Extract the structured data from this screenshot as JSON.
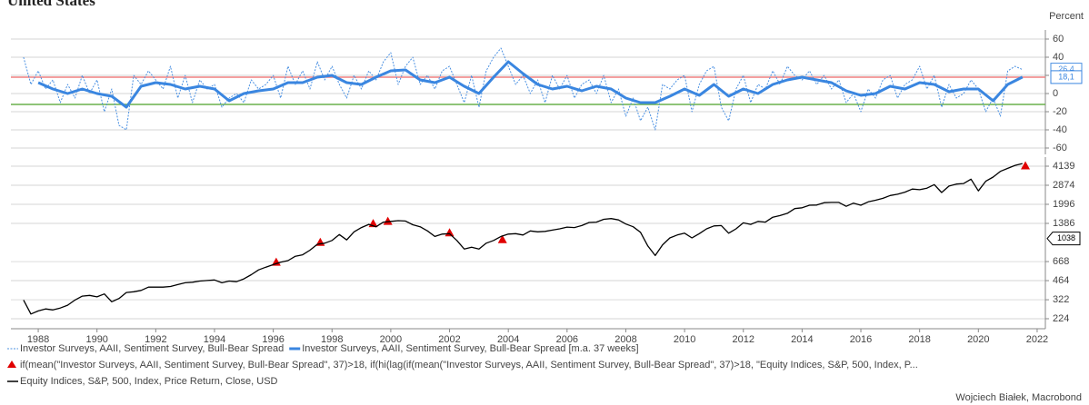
{
  "title": "United States",
  "unit": "Percent",
  "source": "Wojciech Białek, Macrobond",
  "chart_data": [
    {
      "type": "line",
      "ylim": [
        -67,
        70
      ],
      "yticks": [
        60,
        40,
        20,
        0,
        -20,
        -40,
        -60
      ],
      "grid": true,
      "xlim": [
        1987.07,
        2022.28
      ],
      "reference_lines": [
        {
          "value": 18,
          "color": "#f08080"
        },
        {
          "value": -12,
          "color": "#6ab04c"
        }
      ],
      "series": [
        {
          "name": "Investor Surveys, AAII, Sentiment Survey, Bull-Bear Spread",
          "color": "#4a90e2",
          "style": "dotted",
          "x": [
            1987.5,
            1987.75,
            1988,
            1988.25,
            1988.5,
            1988.75,
            1989,
            1989.25,
            1989.5,
            1989.75,
            1990,
            1990.25,
            1990.5,
            1990.75,
            1991,
            1991.25,
            1991.5,
            1991.75,
            1992,
            1992.25,
            1992.5,
            1992.75,
            1993,
            1993.25,
            1993.5,
            1993.75,
            1994,
            1994.25,
            1994.5,
            1994.75,
            1995,
            1995.25,
            1995.5,
            1995.75,
            1996,
            1996.25,
            1996.5,
            1996.75,
            1997,
            1997.25,
            1997.5,
            1997.75,
            1998,
            1998.25,
            1998.5,
            1998.75,
            1999,
            1999.25,
            1999.5,
            1999.75,
            2000,
            2000.25,
            2000.5,
            2000.75,
            2001,
            2001.25,
            2001.5,
            2001.75,
            2002,
            2002.25,
            2002.5,
            2002.75,
            2003,
            2003.25,
            2003.5,
            2003.75,
            2004,
            2004.25,
            2004.5,
            2004.75,
            2005,
            2005.25,
            2005.5,
            2005.75,
            2006,
            2006.25,
            2006.5,
            2006.75,
            2007,
            2007.25,
            2007.5,
            2007.75,
            2008,
            2008.25,
            2008.5,
            2008.75,
            2009,
            2009.25,
            2009.5,
            2009.75,
            2010,
            2010.25,
            2010.5,
            2010.75,
            2011,
            2011.25,
            2011.5,
            2011.75,
            2012,
            2012.25,
            2012.5,
            2012.75,
            2013,
            2013.25,
            2013.5,
            2013.75,
            2014,
            2014.25,
            2014.5,
            2014.75,
            2015,
            2015.25,
            2015.5,
            2015.75,
            2016,
            2016.25,
            2016.5,
            2016.75,
            2017,
            2017.25,
            2017.5,
            2017.75,
            2018,
            2018.25,
            2018.5,
            2018.75,
            2019,
            2019.25,
            2019.5,
            2019.75,
            2020,
            2020.25,
            2020.5,
            2020.75,
            2021,
            2021.25,
            2021.5
          ],
          "values": [
            40,
            10,
            25,
            5,
            15,
            -10,
            10,
            -5,
            20,
            0,
            15,
            -20,
            5,
            -35,
            -40,
            20,
            10,
            25,
            15,
            5,
            30,
            -5,
            20,
            -10,
            15,
            5,
            10,
            -15,
            -5,
            0,
            -10,
            15,
            5,
            10,
            20,
            -5,
            30,
            10,
            25,
            5,
            35,
            15,
            30,
            10,
            -5,
            20,
            5,
            25,
            15,
            35,
            45,
            10,
            30,
            40,
            10,
            20,
            5,
            25,
            30,
            10,
            -10,
            20,
            -15,
            25,
            40,
            50,
            30,
            10,
            20,
            0,
            15,
            -10,
            20,
            5,
            20,
            -5,
            10,
            15,
            0,
            20,
            -10,
            5,
            -25,
            -5,
            -30,
            -15,
            -40,
            10,
            5,
            15,
            20,
            -20,
            10,
            25,
            30,
            -15,
            -30,
            5,
            20,
            -10,
            10,
            5,
            25,
            10,
            30,
            20,
            15,
            25,
            10,
            20,
            5,
            15,
            -10,
            0,
            -20,
            5,
            -5,
            15,
            20,
            -5,
            10,
            15,
            30,
            5,
            20,
            -15,
            10,
            -5,
            0,
            15,
            5,
            -20,
            -5,
            -25,
            25,
            30,
            26.4
          ],
          "last_label": {
            "value": 26.4,
            "label": "26,4"
          }
        },
        {
          "name": "Investor Surveys, AAII, Sentiment Survey, Bull-Bear Spread [m.a. 37 weeks]",
          "color": "#3a86e0",
          "style": "solid",
          "x": [
            1988,
            1988.5,
            1989,
            1989.5,
            1990,
            1990.5,
            1991,
            1991.5,
            1992,
            1992.5,
            1993,
            1993.5,
            1994,
            1994.5,
            1995,
            1995.5,
            1996,
            1996.5,
            1997,
            1997.5,
            1998,
            1998.5,
            1999,
            1999.5,
            2000,
            2000.5,
            2001,
            2001.5,
            2002,
            2002.5,
            2003,
            2003.5,
            2004,
            2004.5,
            2005,
            2005.5,
            2006,
            2006.5,
            2007,
            2007.5,
            2008,
            2008.5,
            2009,
            2009.5,
            2010,
            2010.5,
            2011,
            2011.5,
            2012,
            2012.5,
            2013,
            2013.5,
            2014,
            2014.5,
            2015,
            2015.5,
            2016,
            2016.5,
            2017,
            2017.5,
            2018,
            2018.5,
            2019,
            2019.5,
            2020,
            2020.5,
            2021,
            2021.5
          ],
          "values": [
            12,
            5,
            0,
            5,
            0,
            -3,
            -15,
            8,
            12,
            10,
            5,
            8,
            5,
            -8,
            0,
            3,
            5,
            12,
            12,
            18,
            20,
            12,
            10,
            18,
            25,
            26,
            15,
            12,
            18,
            8,
            0,
            18,
            35,
            22,
            10,
            5,
            8,
            3,
            8,
            5,
            -5,
            -10,
            -10,
            -3,
            5,
            -2,
            10,
            -3,
            5,
            0,
            10,
            15,
            18,
            15,
            12,
            3,
            -2,
            0,
            8,
            5,
            12,
            10,
            2,
            5,
            5,
            -8,
            10,
            18.1
          ],
          "last_label": {
            "value": 18.1,
            "label": "18,1"
          }
        }
      ]
    },
    {
      "type": "line",
      "log_scale": true,
      "ylim": [
        185,
        4923
      ],
      "yticks": [
        224,
        322,
        464,
        668,
        1386,
        1996,
        2874,
        4139
      ],
      "grid": true,
      "xlim": [
        1987.07,
        2022.28
      ],
      "xticks": [
        1988,
        1990,
        1992,
        1994,
        1996,
        1998,
        2000,
        2002,
        2004,
        2006,
        2008,
        2010,
        2012,
        2014,
        2016,
        2018,
        2020,
        2022
      ],
      "label_box": 1038,
      "series": [
        {
          "name": "if(mean(\"Investor Surveys, AAII, Sentiment Survey, Bull-Bear Spread\", 37)>18, if(hi(lag(if(mean(\"Investor Surveys, AAII, Sentiment Survey, Bull-Bear Spread\", 37)>18, \"Equity Indices, S&P, 500, Index, P...",
          "color": "#e00000",
          "style": "triangle",
          "x": [
            1996.1,
            1997.6,
            1999.4,
            1999.9,
            2002.0,
            2003.8,
            2021.6
          ],
          "values": [
            650,
            950,
            1360,
            1420,
            1140,
            1000,
            4100
          ]
        },
        {
          "name": "Equity Indices, S&P, 500, Index, Price Return, Close, USD",
          "color": "#000000",
          "style": "solid",
          "x": [
            1987.5,
            1987.75,
            1988,
            1988.25,
            1988.5,
            1988.75,
            1989,
            1989.25,
            1989.5,
            1989.75,
            1990,
            1990.25,
            1990.5,
            1990.75,
            1991,
            1991.25,
            1991.5,
            1991.75,
            1992,
            1992.25,
            1992.5,
            1992.75,
            1993,
            1993.25,
            1993.5,
            1993.75,
            1994,
            1994.25,
            1994.5,
            1994.75,
            1995,
            1995.25,
            1995.5,
            1995.75,
            1996,
            1996.25,
            1996.5,
            1996.75,
            1997,
            1997.25,
            1997.5,
            1997.75,
            1998,
            1998.25,
            1998.5,
            1998.75,
            1999,
            1999.25,
            1999.5,
            1999.75,
            2000,
            2000.25,
            2000.5,
            2000.75,
            2001,
            2001.25,
            2001.5,
            2001.75,
            2002,
            2002.25,
            2002.5,
            2002.75,
            2003,
            2003.25,
            2003.5,
            2003.75,
            2004,
            2004.25,
            2004.5,
            2004.75,
            2005,
            2005.25,
            2005.5,
            2005.75,
            2006,
            2006.25,
            2006.5,
            2006.75,
            2007,
            2007.25,
            2007.5,
            2007.75,
            2008,
            2008.25,
            2008.5,
            2008.75,
            2009,
            2009.25,
            2009.5,
            2009.75,
            2010,
            2010.25,
            2010.5,
            2010.75,
            2011,
            2011.25,
            2011.5,
            2011.75,
            2012,
            2012.25,
            2012.5,
            2012.75,
            2013,
            2013.25,
            2013.5,
            2013.75,
            2014,
            2014.25,
            2014.5,
            2014.75,
            2015,
            2015.25,
            2015.5,
            2015.75,
            2016,
            2016.25,
            2016.5,
            2016.75,
            2017,
            2017.25,
            2017.5,
            2017.75,
            2018,
            2018.25,
            2018.5,
            2018.75,
            2019,
            2019.25,
            2019.5,
            2019.75,
            2020,
            2020.25,
            2020.5,
            2020.75,
            2021,
            2021.25,
            2021.5
          ],
          "values": [
            320,
            245,
            260,
            270,
            265,
            275,
            290,
            320,
            345,
            350,
            340,
            360,
            310,
            330,
            370,
            375,
            385,
            410,
            410,
            410,
            415,
            430,
            445,
            450,
            460,
            465,
            470,
            445,
            460,
            455,
            480,
            520,
            570,
            600,
            630,
            660,
            680,
            740,
            760,
            830,
            930,
            950,
            1000,
            1120,
            1010,
            1180,
            1280,
            1360,
            1300,
            1420,
            1440,
            1460,
            1450,
            1350,
            1300,
            1200,
            1080,
            1130,
            1140,
            1000,
            850,
            880,
            850,
            950,
            1000,
            1080,
            1130,
            1140,
            1110,
            1200,
            1180,
            1190,
            1220,
            1250,
            1290,
            1280,
            1330,
            1410,
            1420,
            1500,
            1520,
            1480,
            1370,
            1300,
            1170,
            900,
            750,
            920,
            1050,
            1110,
            1150,
            1050,
            1140,
            1250,
            1320,
            1330,
            1150,
            1250,
            1400,
            1360,
            1440,
            1420,
            1560,
            1610,
            1680,
            1840,
            1870,
            1960,
            1970,
            2060,
            2070,
            2070,
            1920,
            2040,
            1960,
            2090,
            2160,
            2240,
            2360,
            2420,
            2520,
            2670,
            2640,
            2720,
            2910,
            2500,
            2830,
            2940,
            2970,
            3230,
            2580,
            3100,
            3360,
            3750,
            3970,
            4200,
            4350
          ]
        }
      ]
    }
  ]
}
